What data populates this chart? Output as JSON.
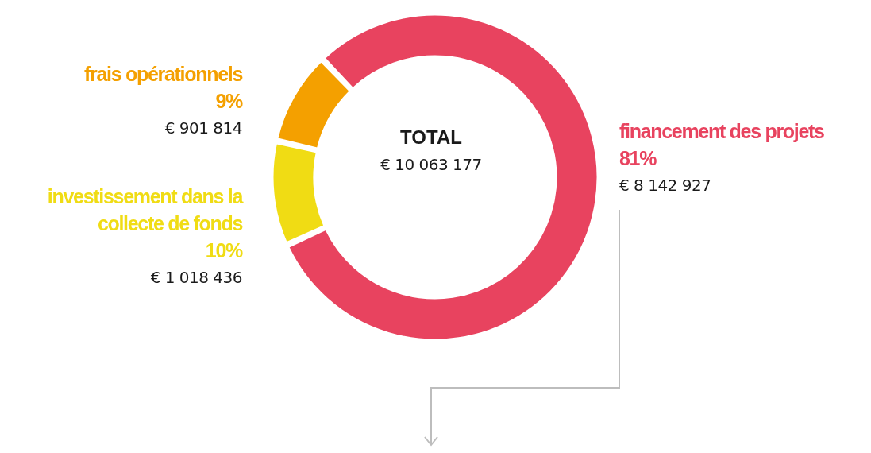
{
  "chart_data": {
    "type": "donut",
    "title": "TOTAL",
    "subtitle": "€ 10 063 177",
    "categories": [
      "financement des projets",
      "investissement dans la collecte de fonds",
      "frais opérationnels"
    ],
    "values": [
      8142927,
      1018436,
      901814
    ],
    "colors": [
      "#e8435f",
      "#f0dc14",
      "#f4a000"
    ],
    "value_labels": [
      "€ 8 142 927",
      "€ 1 018 436",
      "€ 901 814"
    ],
    "annotations": [
      "81%",
      "10%",
      "9%"
    ]
  }
}
